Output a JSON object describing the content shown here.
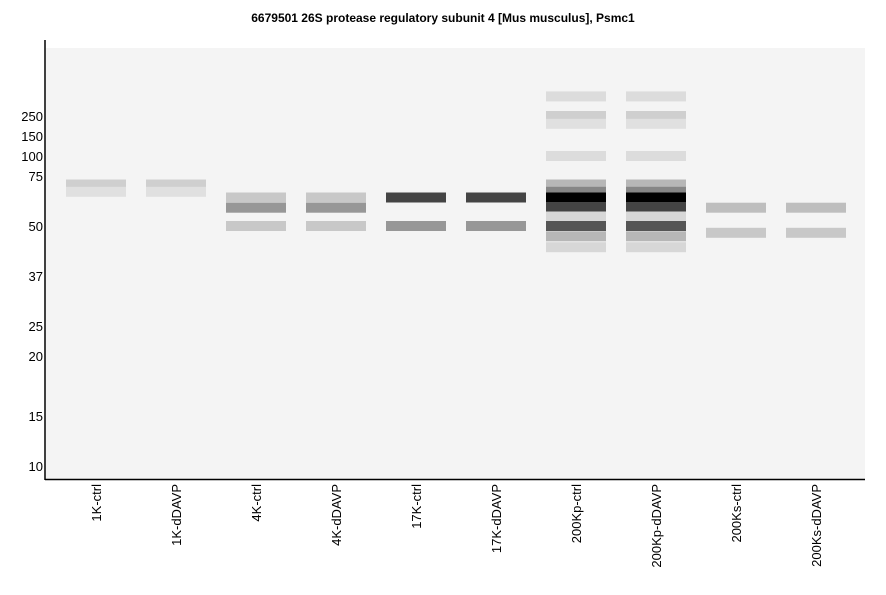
{
  "chart_data": {
    "type": "heatmap",
    "title": "6679501 26S protease regulatory subunit 4 [Mus musculus], Psmc1",
    "xlabel": "",
    "ylabel": "",
    "y_ticks": [
      "250",
      "150",
      "100",
      "75",
      "50",
      "37",
      "25",
      "20",
      "15",
      "10"
    ],
    "lanes": [
      {
        "label": "1K-ctrl",
        "bands": [
          {
            "mw": 70,
            "intensity": 0.15
          },
          {
            "mw": 66,
            "intensity": 0.08
          }
        ]
      },
      {
        "label": "1K-dDAVP",
        "bands": [
          {
            "mw": 70,
            "intensity": 0.15
          },
          {
            "mw": 66,
            "intensity": 0.08
          }
        ]
      },
      {
        "label": "4K-ctrl",
        "bands": [
          {
            "mw": 63,
            "intensity": 0.18
          },
          {
            "mw": 58,
            "intensity": 0.38
          },
          {
            "mw": 50,
            "intensity": 0.18
          }
        ]
      },
      {
        "label": "4K-dDAVP",
        "bands": [
          {
            "mw": 63,
            "intensity": 0.18
          },
          {
            "mw": 58,
            "intensity": 0.38
          },
          {
            "mw": 50,
            "intensity": 0.18
          }
        ]
      },
      {
        "label": "17K-ctrl",
        "bands": [
          {
            "mw": 63,
            "intensity": 0.72
          },
          {
            "mw": 50,
            "intensity": 0.38
          }
        ]
      },
      {
        "label": "17K-dDAVP",
        "bands": [
          {
            "mw": 63,
            "intensity": 0.72
          },
          {
            "mw": 50,
            "intensity": 0.38
          }
        ]
      },
      {
        "label": "200Kp-ctrl",
        "bands": [
          {
            "mw": 340,
            "intensity": 0.1
          },
          {
            "mw": 250,
            "intensity": 0.15
          },
          {
            "mw": 205,
            "intensity": 0.08
          },
          {
            "mw": 100,
            "intensity": 0.1
          },
          {
            "mw": 70,
            "intensity": 0.25
          },
          {
            "mw": 66,
            "intensity": 0.45
          },
          {
            "mw": 63,
            "intensity": 1.0
          },
          {
            "mw": 58,
            "intensity": 0.72
          },
          {
            "mw": 54,
            "intensity": 0.12
          },
          {
            "mw": 50,
            "intensity": 0.65
          },
          {
            "mw": 47,
            "intensity": 0.25
          },
          {
            "mw": 44,
            "intensity": 0.12
          }
        ]
      },
      {
        "label": "200Kp-dDAVP",
        "bands": [
          {
            "mw": 340,
            "intensity": 0.1
          },
          {
            "mw": 250,
            "intensity": 0.15
          },
          {
            "mw": 205,
            "intensity": 0.08
          },
          {
            "mw": 100,
            "intensity": 0.1
          },
          {
            "mw": 70,
            "intensity": 0.25
          },
          {
            "mw": 66,
            "intensity": 0.45
          },
          {
            "mw": 63,
            "intensity": 1.0
          },
          {
            "mw": 58,
            "intensity": 0.72
          },
          {
            "mw": 54,
            "intensity": 0.12
          },
          {
            "mw": 50,
            "intensity": 0.65
          },
          {
            "mw": 47,
            "intensity": 0.25
          },
          {
            "mw": 44,
            "intensity": 0.12
          }
        ]
      },
      {
        "label": "200Ks-ctrl",
        "bands": [
          {
            "mw": 58,
            "intensity": 0.22
          },
          {
            "mw": 48,
            "intensity": 0.18
          }
        ]
      },
      {
        "label": "200Ks-dDAVP",
        "bands": [
          {
            "mw": 58,
            "intensity": 0.22
          },
          {
            "mw": 48,
            "intensity": 0.18
          }
        ]
      }
    ]
  }
}
